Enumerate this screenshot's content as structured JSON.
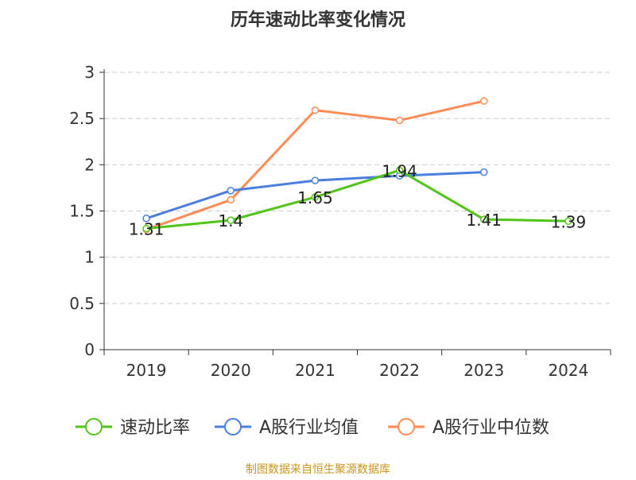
{
  "chart_data": {
    "type": "line",
    "title": "历年速动比率变化情况",
    "categories": [
      "2019",
      "2020",
      "2021",
      "2022",
      "2023",
      "2024"
    ],
    "ylim": [
      0,
      3
    ],
    "yticks": [
      "0",
      "0.5",
      "1",
      "1.5",
      "2",
      "2.5",
      "3"
    ],
    "grid": true,
    "legend_position": "bottom",
    "series": [
      {
        "name": "速动比率",
        "color": "#52c41a",
        "values": [
          1.31,
          1.4,
          1.65,
          1.94,
          1.41,
          1.39
        ],
        "labels": [
          "1.31",
          "1.4",
          "1.65",
          "1.94",
          "1.41",
          "1.39"
        ]
      },
      {
        "name": "A股行业均值",
        "color": "#4a7fe0",
        "values": [
          1.42,
          1.72,
          1.83,
          1.88,
          1.92,
          null
        ]
      },
      {
        "name": "A股行业中位数",
        "color": "#ff8c55",
        "values": [
          1.3,
          1.62,
          2.59,
          2.48,
          2.69,
          null
        ]
      }
    ],
    "source": "制图数据来自恒生聚源数据库"
  }
}
